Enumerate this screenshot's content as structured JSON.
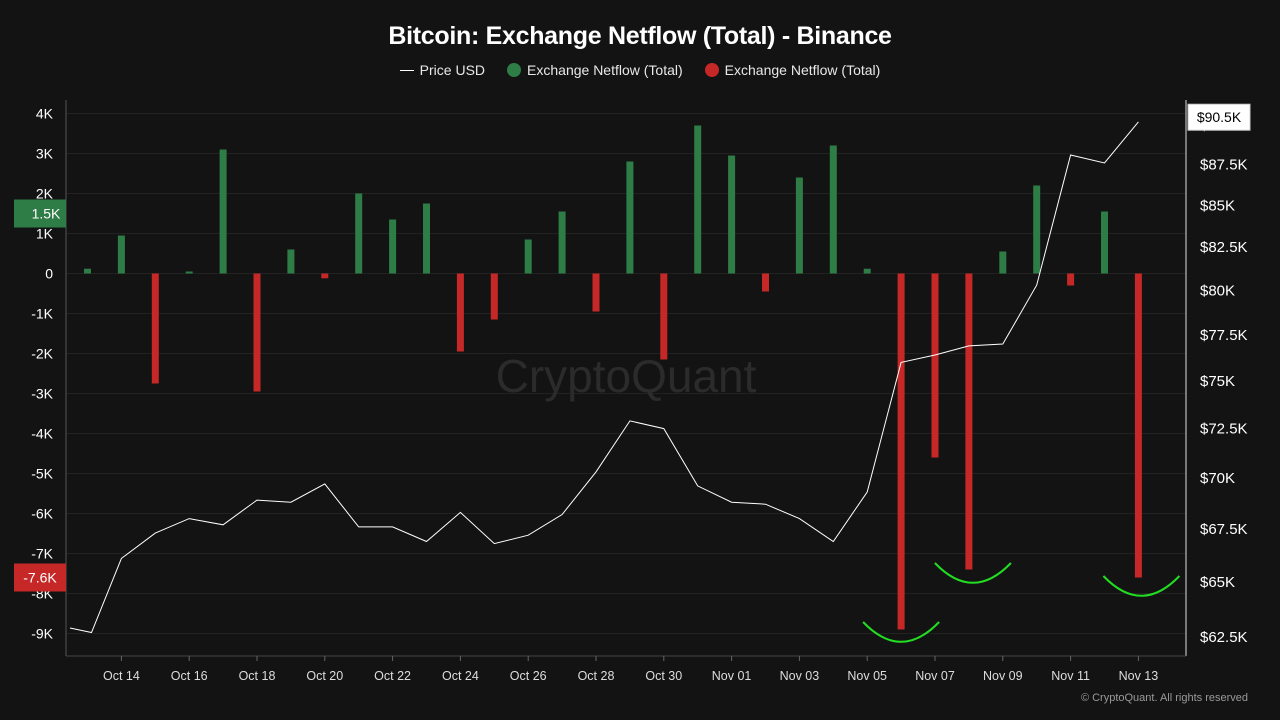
{
  "chart_data": {
    "type": "bar",
    "title": "Bitcoin: Exchange Netflow (Total) - Binance",
    "watermark": "CryptoQuant",
    "copyright": "© CryptoQuant. All rights reserved",
    "legend": {
      "placement": "top-center",
      "price": "Price USD",
      "inflow": "Exchange Netflow (Total)",
      "outflow": "Exchange Netflow (Total)"
    },
    "colors": {
      "positive": "#2e7d46",
      "negative": "#c62828",
      "price_line": "#ffffff",
      "annotation": "#22dd22",
      "background": "#131313"
    },
    "x_tick_labels": [
      "Oct 14",
      "Oct 16",
      "Oct 18",
      "Oct 20",
      "Oct 22",
      "Oct 24",
      "Oct 26",
      "Oct 28",
      "Oct 30",
      "Nov 01",
      "Nov 03",
      "Nov 05",
      "Nov 07",
      "Nov 09",
      "Nov 11",
      "Nov 13"
    ],
    "dates": [
      "Oct 13",
      "Oct 14",
      "Oct 15",
      "Oct 16",
      "Oct 17",
      "Oct 18",
      "Oct 19",
      "Oct 20",
      "Oct 21",
      "Oct 22",
      "Oct 23",
      "Oct 24",
      "Oct 25",
      "Oct 26",
      "Oct 27",
      "Oct 28",
      "Oct 29",
      "Oct 30",
      "Oct 31",
      "Nov 01",
      "Nov 02",
      "Nov 03",
      "Nov 04",
      "Nov 05",
      "Nov 06",
      "Nov 07",
      "Nov 08",
      "Nov 09",
      "Nov 10",
      "Nov 11",
      "Nov 12",
      "Nov 13"
    ],
    "netflow": [
      120,
      950,
      -2750,
      50,
      3100,
      -2950,
      600,
      -120,
      2000,
      1350,
      1750,
      -1950,
      -1150,
      850,
      1550,
      -950,
      2800,
      -2150,
      3700,
      2950,
      -450,
      2400,
      3200,
      120,
      -8900,
      -4600,
      -7400,
      550,
      2200,
      -300,
      1550,
      -7600
    ],
    "price_dates": [
      "Oct 12",
      "Oct 13",
      "Oct 14",
      "Oct 15",
      "Oct 16",
      "Oct 17",
      "Oct 18",
      "Oct 19",
      "Oct 20",
      "Oct 21",
      "Oct 22",
      "Oct 23",
      "Oct 24",
      "Oct 25",
      "Oct 26",
      "Oct 27",
      "Oct 28",
      "Oct 29",
      "Oct 30",
      "Oct 31",
      "Nov 01",
      "Nov 02",
      "Nov 03",
      "Nov 04",
      "Nov 05",
      "Nov 06",
      "Nov 07",
      "Nov 08",
      "Nov 09",
      "Nov 10",
      "Nov 11",
      "Nov 12",
      "Nov 13"
    ],
    "price": [
      62900,
      62700,
      66100,
      67300,
      68000,
      67700,
      68900,
      68800,
      69700,
      67600,
      67600,
      66900,
      68300,
      66800,
      67200,
      68200,
      70300,
      72900,
      72500,
      69600,
      68800,
      68700,
      68000,
      66900,
      69300,
      76000,
      76400,
      76900,
      77000,
      80300,
      88100,
      87600,
      90200
    ],
    "left_axis": {
      "ticks": [
        4000,
        3000,
        2000,
        1000,
        0,
        -1000,
        -2000,
        -3000,
        -4000,
        -5000,
        -6000,
        -7000,
        -8000,
        -9000
      ],
      "tick_labels": [
        "4K",
        "3K",
        "2K",
        "1K",
        "0",
        "-1K",
        "-2K",
        "-3K",
        "-4K",
        "-5K",
        "-6K",
        "-7K",
        "-8K",
        "-9K"
      ],
      "range": [
        -9500,
        4300
      ]
    },
    "right_axis": {
      "ticks": [
        62500,
        65000,
        67500,
        70000,
        72500,
        75000,
        77500,
        80000,
        82500,
        85000,
        87500,
        90000
      ],
      "tick_labels": [
        "$62.5K",
        "$65K",
        "$67.5K",
        "$70K",
        "$72.5K",
        "$75K",
        "$77.5K",
        "$80K",
        "$82.5K",
        "$85K",
        "$87.5K",
        "$90K"
      ],
      "scale": "log"
    },
    "badges": {
      "left_positive": {
        "label": "1.5K",
        "value": 1500
      },
      "left_negative": {
        "label": "-7.6K",
        "value": -7600
      },
      "right_price": {
        "label": "$90.5K",
        "value": 90500
      }
    },
    "annotations": {
      "smile_arcs_at": [
        "Nov 06",
        "Nov 08",
        "Nov 13"
      ]
    },
    "grid": true
  }
}
